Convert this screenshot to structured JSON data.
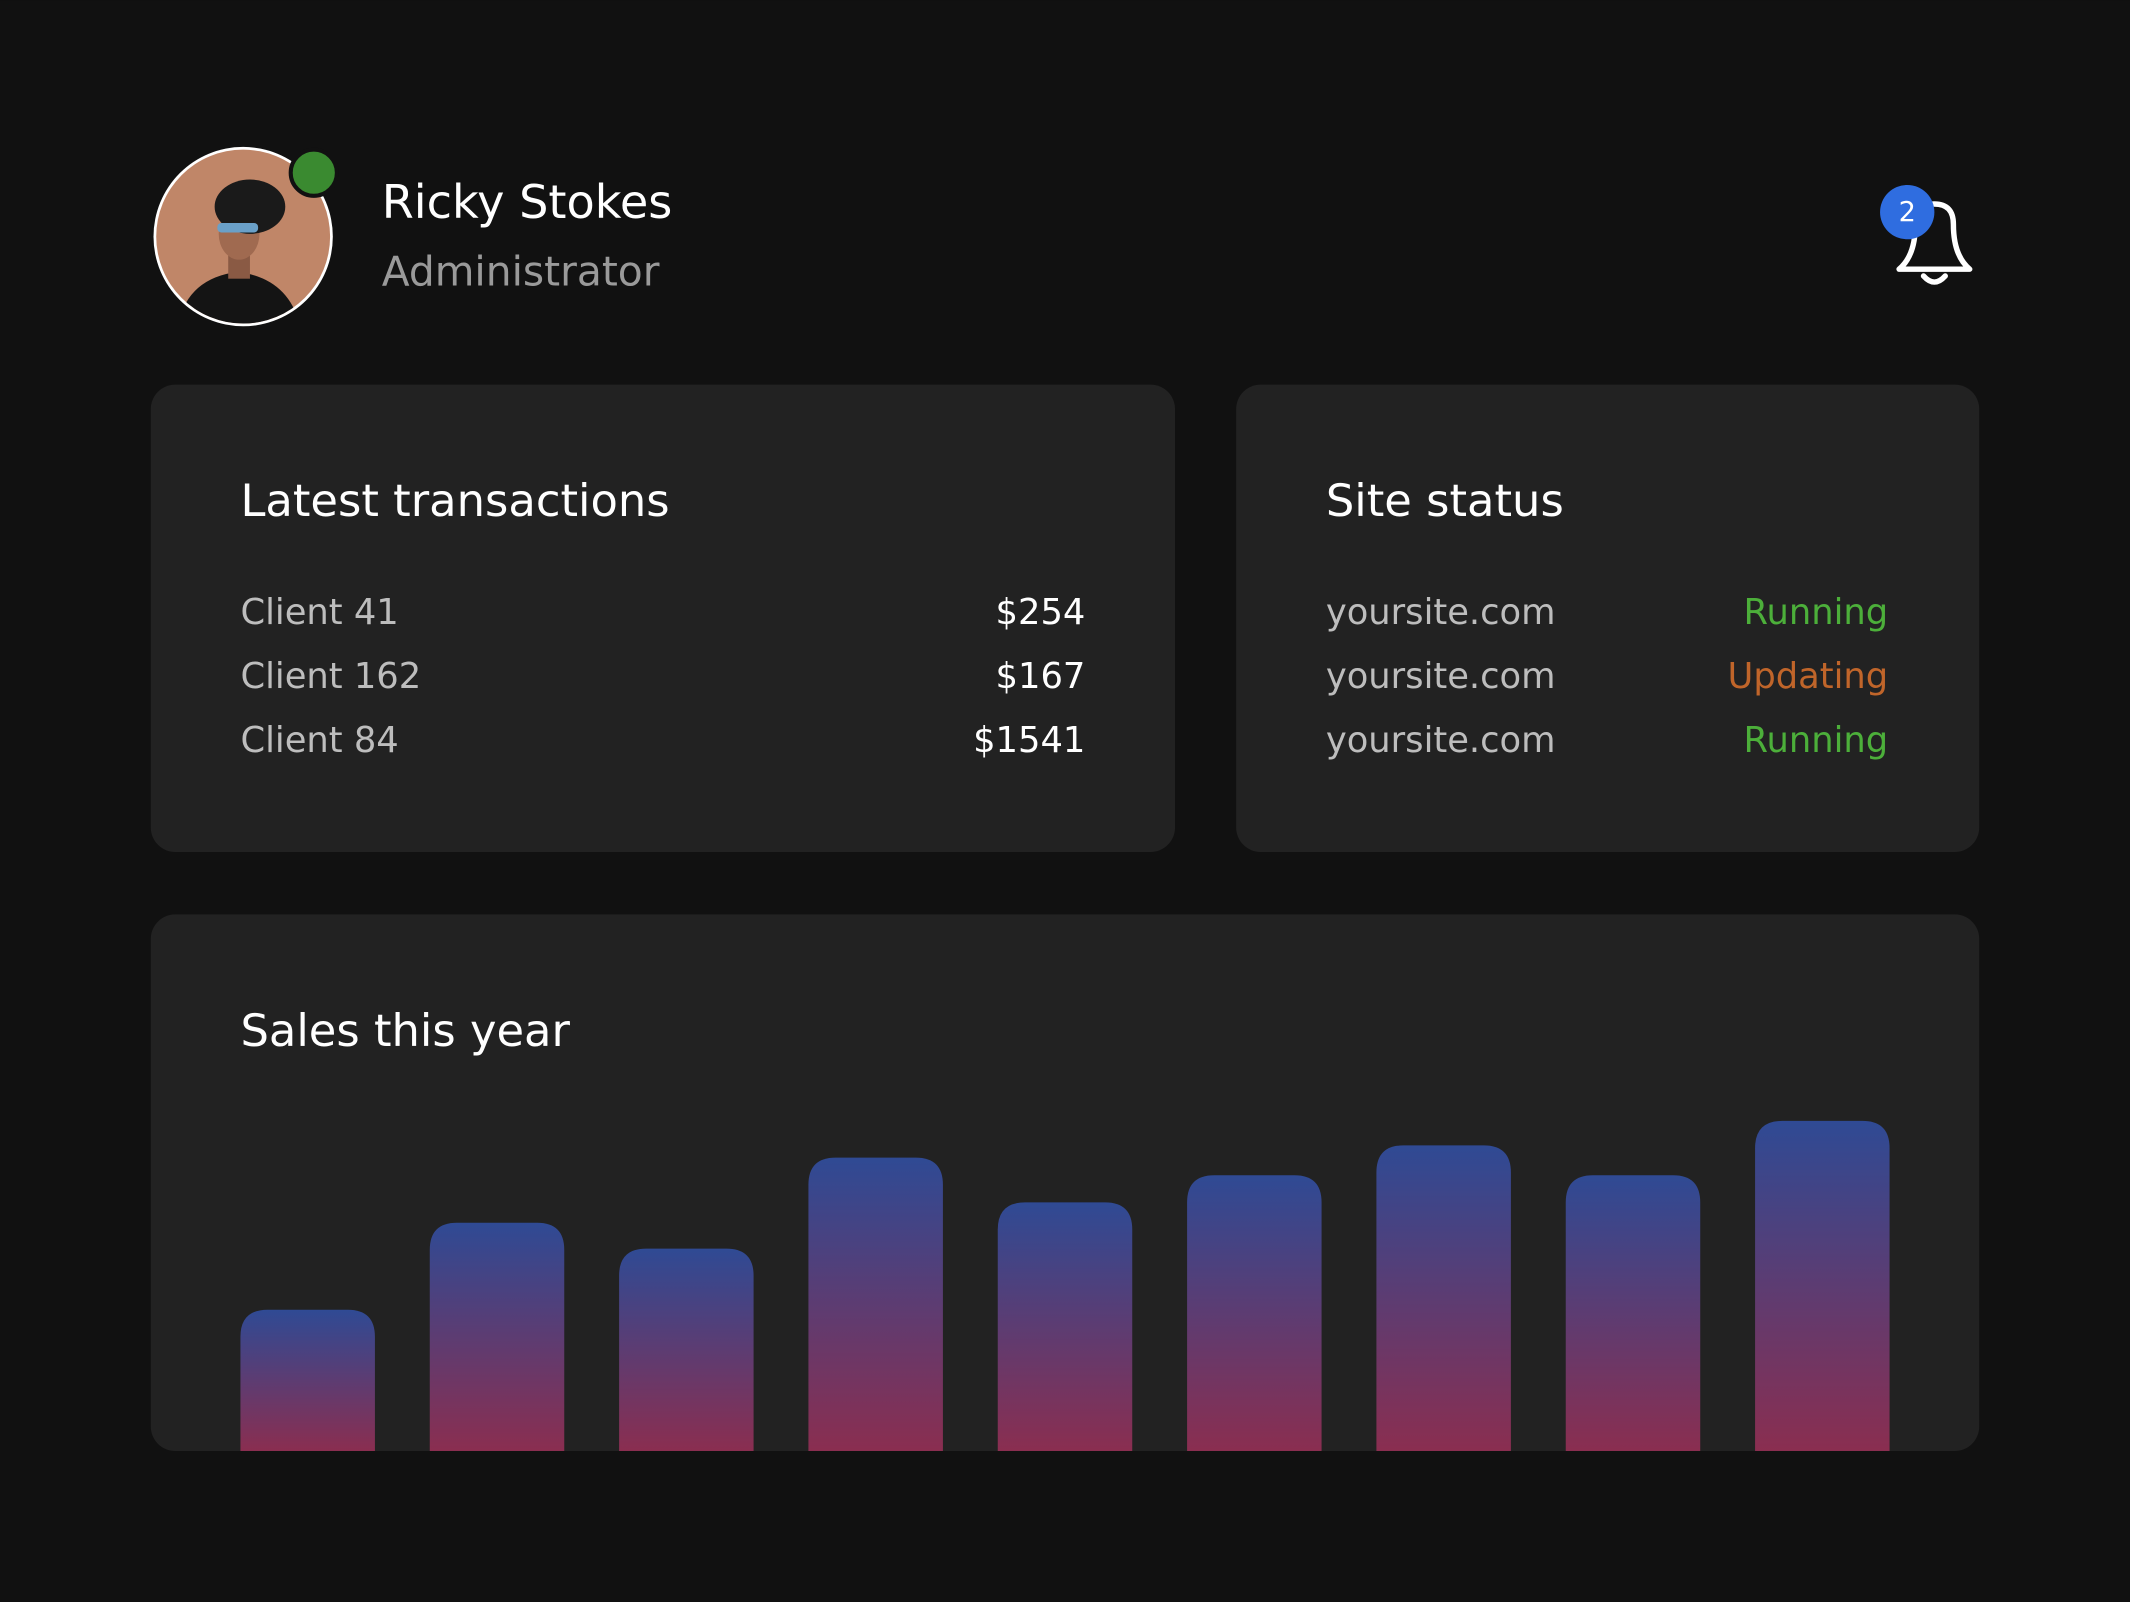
{
  "header": {
    "name": "Ricky Stokes",
    "role": "Administrator",
    "notifications": 2
  },
  "transactions": {
    "title": "Latest transactions",
    "rows": [
      {
        "client": "Client 41",
        "amount": "$254"
      },
      {
        "client": "Client 162",
        "amount": "$167"
      },
      {
        "client": "Client 84",
        "amount": "$1541"
      }
    ]
  },
  "site_status": {
    "title": "Site status",
    "rows": [
      {
        "site": "yoursite.com",
        "status": "Running",
        "color": "#4caf3a"
      },
      {
        "site": "yoursite.com",
        "status": "Updating",
        "color": "#c0652a"
      },
      {
        "site": "yoursite.com",
        "status": "Running",
        "color": "#4caf3a"
      }
    ]
  },
  "chart_data": {
    "type": "bar",
    "title": "Sales this year",
    "categories": [
      null,
      null,
      null,
      null,
      null,
      null,
      null,
      null,
      null
    ],
    "values": [
      104,
      168,
      149,
      216,
      183,
      203,
      225,
      203,
      243
    ],
    "ylim": [
      0,
      250
    ],
    "color_top": "#2f4a94",
    "color_bottom": "#8a2e50"
  }
}
